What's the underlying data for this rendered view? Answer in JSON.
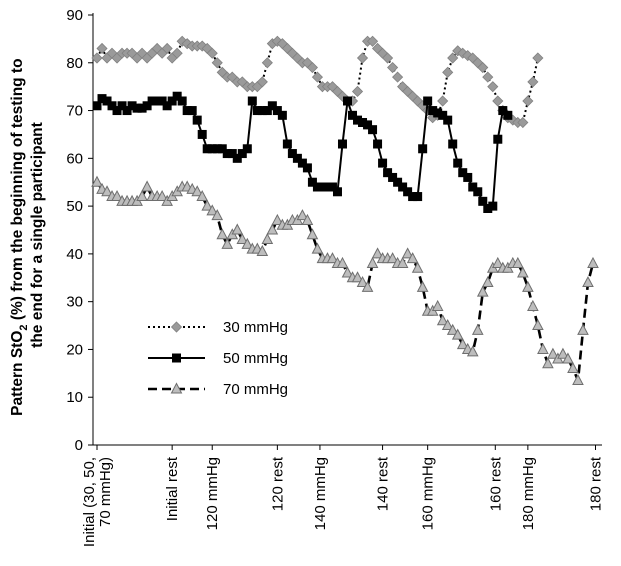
{
  "chart_data": {
    "type": "line",
    "title": "",
    "ylabel_line1_pre": "Pattern StO",
    "ylabel_line1_sub": "2",
    "ylabel_line1_post": " (%) from the beginning of testing to",
    "ylabel_line2": "the end for a single participant",
    "xlabel": "",
    "ylim": [
      0,
      90
    ],
    "yticks": [
      0,
      10,
      20,
      30,
      40,
      50,
      60,
      70,
      80,
      90
    ],
    "xlim": [
      0,
      100
    ],
    "grid": false,
    "legend_position": "lower-left",
    "x_ticks": [
      {
        "x": 0,
        "lines": [
          "Initial (30, 50,",
          "70 mmHg)"
        ]
      },
      {
        "x": 15,
        "lines": [
          "Initial rest"
        ]
      },
      {
        "x": 23,
        "lines": [
          "120 mmHg"
        ]
      },
      {
        "x": 36,
        "lines": [
          "120 rest"
        ]
      },
      {
        "x": 44.5,
        "lines": [
          "140 mmHg"
        ]
      },
      {
        "x": 57,
        "lines": [
          "140 rest"
        ]
      },
      {
        "x": 66,
        "lines": [
          "160 mmHg"
        ]
      },
      {
        "x": 79.5,
        "lines": [
          "160 rest"
        ]
      },
      {
        "x": 86,
        "lines": [
          "180 mmHg"
        ]
      },
      {
        "x": 99.5,
        "lines": [
          "180 rest"
        ]
      }
    ],
    "series": [
      {
        "name": "30 mmHg",
        "color": "#8c8c8c",
        "line_style": "dotted",
        "marker": "diamond",
        "points": [
          [
            0,
            81
          ],
          [
            1,
            83
          ],
          [
            2,
            81
          ],
          [
            3,
            82
          ],
          [
            4,
            81
          ],
          [
            5,
            82
          ],
          [
            6,
            82
          ],
          [
            7,
            82
          ],
          [
            8,
            81
          ],
          [
            9,
            82
          ],
          [
            10,
            81
          ],
          [
            11,
            82
          ],
          [
            12,
            83
          ],
          [
            13,
            82
          ],
          [
            14,
            83
          ],
          [
            15,
            81
          ],
          [
            16,
            82
          ],
          [
            17,
            84.5
          ],
          [
            18,
            84
          ],
          [
            19,
            83.5
          ],
          [
            20,
            83.5
          ],
          [
            21,
            83.5
          ],
          [
            22,
            83
          ],
          [
            23,
            82
          ],
          [
            24,
            80
          ],
          [
            25,
            78
          ],
          [
            26,
            77
          ],
          [
            27,
            77
          ],
          [
            28,
            76
          ],
          [
            29,
            76
          ],
          [
            30,
            75
          ],
          [
            31,
            75
          ],
          [
            32,
            75
          ],
          [
            33,
            76
          ],
          [
            34,
            80
          ],
          [
            35,
            84
          ],
          [
            36,
            84.5
          ],
          [
            37,
            84
          ],
          [
            38,
            83
          ],
          [
            39,
            82
          ],
          [
            40,
            81
          ],
          [
            41,
            80
          ],
          [
            42,
            80
          ],
          [
            43,
            79
          ],
          [
            44,
            77
          ],
          [
            45,
            75
          ],
          [
            46,
            75
          ],
          [
            47,
            75
          ],
          [
            48,
            74
          ],
          [
            49,
            73
          ],
          [
            50,
            72
          ],
          [
            51,
            72
          ],
          [
            52,
            74
          ],
          [
            53,
            81
          ],
          [
            54,
            84.5
          ],
          [
            55,
            84.5
          ],
          [
            56,
            83
          ],
          [
            57,
            82
          ],
          [
            58,
            81
          ],
          [
            59,
            79
          ],
          [
            60,
            77
          ],
          [
            61,
            75
          ],
          [
            62,
            74
          ],
          [
            63,
            73
          ],
          [
            64,
            72
          ],
          [
            65,
            71
          ],
          [
            66,
            70
          ],
          [
            67,
            68.5
          ],
          [
            68,
            69
          ],
          [
            69,
            72
          ],
          [
            70,
            78
          ],
          [
            71,
            81
          ],
          [
            72,
            82.5
          ],
          [
            73,
            82
          ],
          [
            74,
            81.5
          ],
          [
            75,
            81
          ],
          [
            76,
            80
          ],
          [
            77,
            79
          ],
          [
            78,
            77
          ],
          [
            79,
            75
          ],
          [
            80,
            72
          ],
          [
            81,
            70
          ],
          [
            82,
            68.5
          ],
          [
            83,
            68
          ],
          [
            84,
            67.5
          ],
          [
            85,
            67.5
          ],
          [
            86,
            72
          ],
          [
            87,
            76
          ],
          [
            88,
            81
          ]
        ]
      },
      {
        "name": "50 mmHg",
        "color": "#000000",
        "line_style": "solid",
        "marker": "square",
        "points": [
          [
            0,
            71
          ],
          [
            1,
            72.5
          ],
          [
            2,
            72
          ],
          [
            3,
            71
          ],
          [
            4,
            70
          ],
          [
            5,
            71
          ],
          [
            6,
            70
          ],
          [
            7,
            71
          ],
          [
            8,
            70.5
          ],
          [
            9,
            70.5
          ],
          [
            10,
            71
          ],
          [
            11,
            72
          ],
          [
            12,
            72
          ],
          [
            13,
            72
          ],
          [
            14,
            71
          ],
          [
            15,
            72
          ],
          [
            16,
            73
          ],
          [
            17,
            72
          ],
          [
            18,
            70
          ],
          [
            19,
            70
          ],
          [
            20,
            68
          ],
          [
            21,
            65
          ],
          [
            22,
            62
          ],
          [
            23,
            62
          ],
          [
            24,
            62
          ],
          [
            25,
            62
          ],
          [
            26,
            61
          ],
          [
            27,
            61
          ],
          [
            28,
            60
          ],
          [
            29,
            61
          ],
          [
            30,
            62
          ],
          [
            31,
            72
          ],
          [
            32,
            70
          ],
          [
            33,
            70
          ],
          [
            34,
            70
          ],
          [
            35,
            71
          ],
          [
            36,
            70
          ],
          [
            37,
            69
          ],
          [
            38,
            63
          ],
          [
            39,
            61
          ],
          [
            40,
            60
          ],
          [
            41,
            59
          ],
          [
            42,
            58
          ],
          [
            43,
            55
          ],
          [
            44,
            54
          ],
          [
            45,
            54
          ],
          [
            46,
            54
          ],
          [
            47,
            54
          ],
          [
            48,
            53
          ],
          [
            49,
            63
          ],
          [
            50,
            72
          ],
          [
            51,
            69
          ],
          [
            52,
            68
          ],
          [
            53,
            67.5
          ],
          [
            54,
            67
          ],
          [
            55,
            66
          ],
          [
            56,
            63
          ],
          [
            57,
            59
          ],
          [
            58,
            57
          ],
          [
            59,
            56
          ],
          [
            60,
            55
          ],
          [
            61,
            54
          ],
          [
            62,
            53
          ],
          [
            63,
            52
          ],
          [
            64,
            52
          ],
          [
            65,
            62
          ],
          [
            66,
            72
          ],
          [
            67,
            70
          ],
          [
            68,
            69.5
          ],
          [
            69,
            69
          ],
          [
            70,
            68
          ],
          [
            71,
            63
          ],
          [
            72,
            59
          ],
          [
            73,
            57
          ],
          [
            74,
            56
          ],
          [
            75,
            54
          ],
          [
            76,
            53
          ],
          [
            77,
            51
          ],
          [
            78,
            49.5
          ],
          [
            79,
            50
          ],
          [
            80,
            64
          ],
          [
            81,
            70
          ],
          [
            82,
            69
          ]
        ]
      },
      {
        "name": "70 mmHg",
        "color": "#8c8c8c",
        "line_style": "dashed",
        "marker": "triangle",
        "points": [
          [
            0,
            55
          ],
          [
            1,
            53.5
          ],
          [
            2,
            53
          ],
          [
            3,
            52
          ],
          [
            4,
            52
          ],
          [
            5,
            51
          ],
          [
            6,
            51
          ],
          [
            7,
            51
          ],
          [
            8,
            51
          ],
          [
            9,
            52
          ],
          [
            10,
            54
          ],
          [
            11,
            52
          ],
          [
            12,
            52
          ],
          [
            13,
            52
          ],
          [
            14,
            51
          ],
          [
            15,
            52
          ],
          [
            16,
            53
          ],
          [
            17,
            54
          ],
          [
            18,
            54
          ],
          [
            19,
            53.5
          ],
          [
            20,
            53
          ],
          [
            21,
            52
          ],
          [
            22,
            50
          ],
          [
            23,
            49
          ],
          [
            24,
            48
          ],
          [
            25,
            44
          ],
          [
            26,
            42
          ],
          [
            27,
            44
          ],
          [
            28,
            45
          ],
          [
            29,
            43
          ],
          [
            30,
            42
          ],
          [
            31,
            41
          ],
          [
            32,
            41
          ],
          [
            33,
            40.5
          ],
          [
            34,
            43
          ],
          [
            35,
            45
          ],
          [
            36,
            47
          ],
          [
            37,
            46
          ],
          [
            38,
            46
          ],
          [
            39,
            47
          ],
          [
            40,
            47
          ],
          [
            41,
            48
          ],
          [
            42,
            47
          ],
          [
            43,
            44
          ],
          [
            44,
            41
          ],
          [
            45,
            39
          ],
          [
            46,
            39
          ],
          [
            47,
            39
          ],
          [
            48,
            38
          ],
          [
            49,
            38
          ],
          [
            50,
            36
          ],
          [
            51,
            35
          ],
          [
            52,
            35
          ],
          [
            53,
            34
          ],
          [
            54,
            33
          ],
          [
            55,
            38
          ],
          [
            56,
            40
          ],
          [
            57,
            39
          ],
          [
            58,
            39
          ],
          [
            59,
            39
          ],
          [
            60,
            38
          ],
          [
            61,
            38
          ],
          [
            62,
            40
          ],
          [
            63,
            39
          ],
          [
            64,
            37
          ],
          [
            65,
            33
          ],
          [
            66,
            28
          ],
          [
            67,
            28
          ],
          [
            68,
            29
          ],
          [
            69,
            26
          ],
          [
            70,
            25
          ],
          [
            71,
            24
          ],
          [
            72,
            23
          ],
          [
            73,
            21
          ],
          [
            74,
            20
          ],
          [
            75,
            19.5
          ],
          [
            76,
            24
          ],
          [
            77,
            32
          ],
          [
            78,
            34
          ],
          [
            79,
            37
          ],
          [
            80,
            38
          ],
          [
            81,
            37
          ],
          [
            82,
            37
          ],
          [
            83,
            38
          ],
          [
            84,
            38
          ],
          [
            85,
            36
          ],
          [
            86,
            33
          ],
          [
            87,
            29
          ],
          [
            88,
            25
          ],
          [
            89,
            20
          ],
          [
            90,
            17
          ],
          [
            91,
            19
          ],
          [
            92,
            18
          ],
          [
            93,
            19
          ],
          [
            94,
            18
          ],
          [
            95,
            16
          ],
          [
            96,
            13.5
          ],
          [
            97,
            24
          ],
          [
            98,
            34
          ],
          [
            99,
            38
          ]
        ]
      }
    ]
  }
}
